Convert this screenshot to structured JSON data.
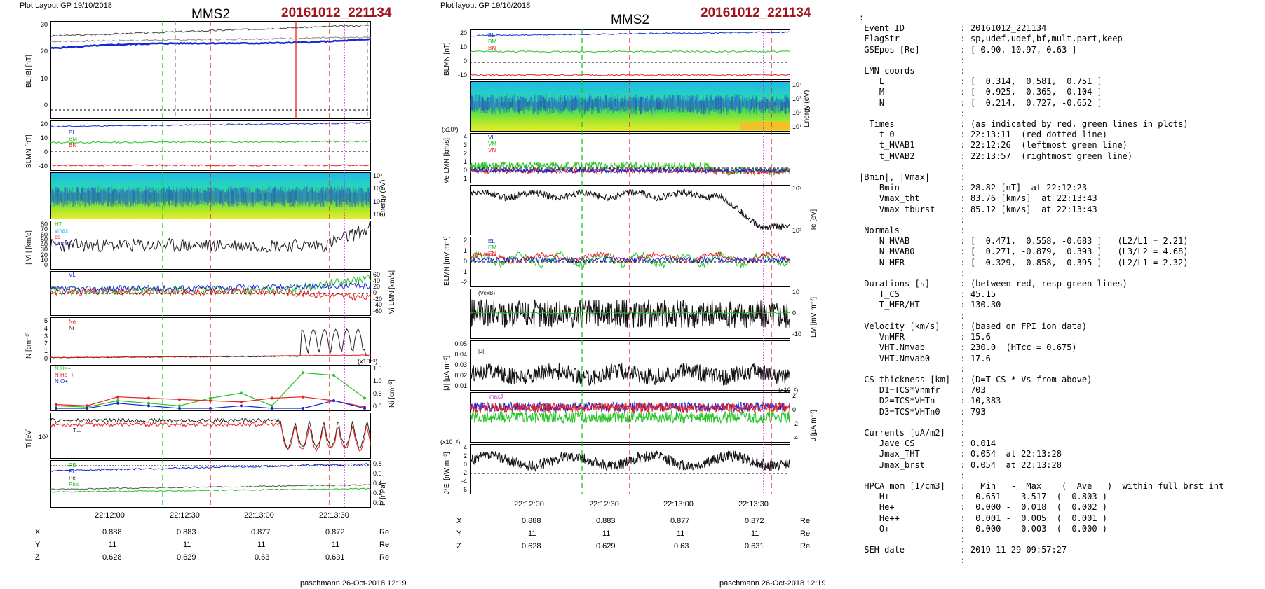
{
  "left_plot": {
    "header": "Plot Layout GP 19/10/2018",
    "spacecraft": "MMS2",
    "event": "20161012_221134",
    "footer": "paschmann 26-Oct-2018 12:19",
    "time_ticks": [
      "22:12:00",
      "22:12:30",
      "22:13:00",
      "22:13:30"
    ],
    "coords": {
      "x_label": "X",
      "y_label": "Y",
      "z_label": "Z",
      "unit": "Re",
      "x": [
        "0.888",
        "0.883",
        "0.877",
        "0.872"
      ],
      "y": [
        "11",
        "11",
        "11",
        "11"
      ],
      "z": [
        "0.628",
        "0.629",
        "0.63",
        "0.631"
      ]
    },
    "panels": {
      "b": {
        "ylabel": "BL,|B| [nT]",
        "ticks": [
          "30",
          "20",
          "10",
          "0"
        ]
      },
      "blmn": {
        "ylabel": "BLMN [nT]",
        "ticks": [
          "20",
          "10",
          "0",
          "-10"
        ],
        "legend": [
          "BL",
          "BM",
          "BN"
        ]
      },
      "energy": {
        "ylabel": "Energy (eV)",
        "ticks": [
          "10⁴",
          "10³",
          "10²",
          "10¹"
        ]
      },
      "vi": {
        "ylabel": "| Vi | [km/s]",
        "ticks": [
          "80",
          "70",
          "60",
          "50",
          "40",
          "30",
          "20",
          "10",
          "0"
        ],
        "legend": [
          "HT",
          "vmax",
          "cs",
          "pvmax"
        ]
      },
      "vilmn": {
        "ylabel": "Vi LMN [km/s]",
        "ticks": [
          "60",
          "40",
          "20",
          "0",
          "-20",
          "-40",
          "-60"
        ],
        "legend": [
          "VL"
        ]
      },
      "n": {
        "ylabel": "N [cm⁻³]",
        "ticks": [
          "5",
          "4",
          "3",
          "2",
          "1",
          "0"
        ],
        "legend": [
          "Ne",
          "Ni"
        ]
      },
      "nion": {
        "ylabel": "Ni [cm⁻³]",
        "ticks": [
          "1.5",
          "1.0",
          "0.5",
          "0.0"
        ],
        "exp": "(x10⁻²)",
        "legend": [
          "N  He+",
          "N  He++",
          "N  O+"
        ]
      },
      "ti": {
        "ylabel": "Ti [eV]",
        "ticks": [
          "10³"
        ],
        "legend": [
          "T⊥"
        ]
      },
      "p": {
        "ylabel": "P [nPa]",
        "ticks": [
          "0.8",
          "0.6",
          "0.4",
          "0.2",
          "0.0"
        ],
        "legend": [
          "PB",
          "Pi",
          "Pe",
          "Ptot"
        ]
      }
    }
  },
  "right_plot": {
    "header": "Plot layout GP 19/10/2018",
    "spacecraft": "MMS2",
    "event": "20161012_221134",
    "footer": "paschmann 26-Oct-2018 12:19",
    "time_ticks": [
      "22:12:00",
      "22:12:30",
      "22:13:00",
      "22:13:30"
    ],
    "coords": {
      "x_label": "X",
      "y_label": "Y",
      "z_label": "Z",
      "unit": "Re",
      "x": [
        "0.888",
        "0.883",
        "0.877",
        "0.872"
      ],
      "y": [
        "11",
        "11",
        "11",
        "11"
      ],
      "z": [
        "0.628",
        "0.629",
        "0.63",
        "0.631"
      ]
    },
    "panels": {
      "blmn": {
        "ylabel": "BLMN [nT]",
        "ticks": [
          "20",
          "10",
          "0",
          "-10"
        ],
        "legend": [
          "BL",
          "BM",
          "BN"
        ]
      },
      "energy": {
        "ylabel": "Energy (eV)",
        "ticks": [
          "10⁴",
          "10³",
          "10²",
          "10¹"
        ]
      },
      "ve": {
        "ylabel": "Ve LMN [km/s]",
        "ticks": [
          "4",
          "3",
          "2",
          "1",
          "0",
          "-1"
        ],
        "exp": "(x10³)",
        "legend": [
          "VL",
          "VM",
          "VN"
        ]
      },
      "te": {
        "ylabel": "Te [eV]",
        "ticks": [
          "10³",
          "10²"
        ]
      },
      "e": {
        "ylabel": "ELMN [mV m⁻¹]",
        "ticks": [
          "2",
          "1",
          "0",
          "-1",
          "-2"
        ],
        "legend": [
          "EL",
          "EM",
          "EN"
        ]
      },
      "em": {
        "ylabel": "EM [mV m⁻²]",
        "ticks": [
          "10",
          "0",
          "-10"
        ],
        "legend": [
          "(VexB)"
        ]
      },
      "j": {
        "ylabel": "|J| [µA m⁻²]",
        "ticks": [
          "0.05",
          "0.04",
          "0.03",
          "0.02",
          "0.01"
        ],
        "legend": [
          "|J|"
        ]
      },
      "jlmn": {
        "ylabel": "J [µA m⁻²]",
        "ticks": [
          "2",
          "0",
          "-2",
          "-4"
        ],
        "exp": "(x10⁻²)",
        "legend": [
          "maxJ"
        ]
      },
      "je": {
        "ylabel": "J*E' [nW m⁻³]",
        "ticks": [
          "4",
          "2",
          "0",
          "-2",
          "-4",
          "-6"
        ],
        "exp": "(x10⁻²)"
      }
    }
  },
  "info_lines": [
    ":",
    " Event ID           : 20161012_221134",
    " FlagStr            : sp,udef,udef,bf,mult,part,keep",
    " GSEpos [Re]        : [ 0.90, 10.97, 0.63 ]",
    "                    :",
    " LMN coords         :",
    "    L               : [  0.314,  0.581,  0.751 ]",
    "    M               : [ -0.925,  0.365,  0.104 ]",
    "    N               : [  0.214,  0.727, -0.652 ]",
    "                    :",
    "  Times             : (as indicated by red, green lines in plots)",
    "    t_0             : 22:13:11  (red dotted line)",
    "    t_MVAB1         : 22:12:26  (leftmost green line)",
    "    t_MVAB2         : 22:13:57  (rightmost green line)",
    "                    :",
    "|Bmin|, |Vmax|      :",
    "    Bmin            : 28.82 [nT]  at 22:12:23",
    "    Vmax_tht        : 83.76 [km/s]  at 22:13:43",
    "    Vmax_tburst     : 85.12 [km/s]  at 22:13:43",
    "                    :",
    " Normals            :",
    "    N MVAB          : [  0.471,  0.558, -0.683 ]   (L2/L1 = 2.21)",
    "    N MVAB0         : [  0.271, -0.879,  0.393 ]   (L3/L2 = 4.68)",
    "    N MFR           : [  0.329, -0.858,  0.395 ]   (L2/L1 = 2.32)",
    "                    :",
    " Durations [s]      : (between red, resp green lines)",
    "    T_CS            : 45.15",
    "    T_MFR/HT        : 130.30",
    "                    :",
    " Velocity [km/s]    : (based on FPI ion data)",
    "    VnMFR           : 15.6",
    "    VHT.Nmvab       : 230.0  (HTcc = 0.675)",
    "    VHT.Nmvab0      : 17.6",
    "                    :",
    " CS thickness [km]  : (D=T_CS * Vs from above)",
    "    D1=TCS*Vnmfr    : 703",
    "    D2=TCS*VHTn     : 10,383",
    "    D3=TCS*VHTn0    : 793",
    "                    :",
    " Currents [uA/m2]   :",
    "    Jave_CS         : 0.014",
    "    Jmax_THT        : 0.054  at 22:13:28",
    "    Jmax_brst       : 0.054  at 22:13:28",
    "                    :",
    " HPCA mom [1/cm3]   :   Min   -  Max    (  Ave   )  within full brst int",
    "    H+              :  0.651 -  3.517  (  0.803 )",
    "    He+             :  0.000 -  0.018  (  0.002 )",
    "    He++            :  0.001 -  0.005  (  0.001 )",
    "    O+              :  0.000 -  0.003  (  0.000 )",
    "                    :",
    " SEH date           : 2019-11-29 09:57:27",
    "                    :"
  ],
  "chart_data": [
    {
      "type": "line",
      "title": "MMS2",
      "subtitle": "20161012_221134",
      "x": [
        "22:12:00",
        "22:12:30",
        "22:13:00",
        "22:13:30"
      ],
      "panels": [
        "BL,|B| [nT]",
        "BLMN [nT]",
        "Energy (eV)",
        "| Vi | [km/s]",
        "Vi LMN [km/s]",
        "N [cm⁻³]",
        "Ni [cm⁻³]",
        "Ti [eV]",
        "P [nPa]"
      ],
      "series": [
        {
          "name": "BL",
          "values": [
            24,
            24.5,
            24.8,
            27
          ]
        },
        {
          "name": "Ni",
          "values": [
            0.6,
            0.8,
            0.9,
            3.5
          ]
        },
        {
          "name": "N  He++",
          "values": [
            0.25,
            0.4,
            0.35,
            0.1
          ]
        },
        {
          "name": "N  He+",
          "values": [
            0.1,
            0.5,
            1.3,
            0.5
          ]
        }
      ]
    },
    {
      "type": "line",
      "title": "MMS2",
      "subtitle": "20161012_221134",
      "x": [
        "22:12:00",
        "22:12:30",
        "22:13:00",
        "22:13:30"
      ],
      "panels": [
        "BLMN [nT]",
        "Energy (eV)",
        "Ve LMN [km/s]",
        "Te [eV]",
        "ELMN [mV m⁻¹]",
        "EM [mV m⁻²]",
        "|J| [µA m⁻²]",
        "J [µA m⁻²]",
        "J*E' [nW m⁻³]"
      ],
      "series": [
        {
          "name": "BL",
          "values": [
            23,
            24,
            24.5,
            26
          ]
        },
        {
          "name": "|J|",
          "values": [
            0.02,
            0.025,
            0.022,
            0.03
          ]
        }
      ]
    }
  ]
}
